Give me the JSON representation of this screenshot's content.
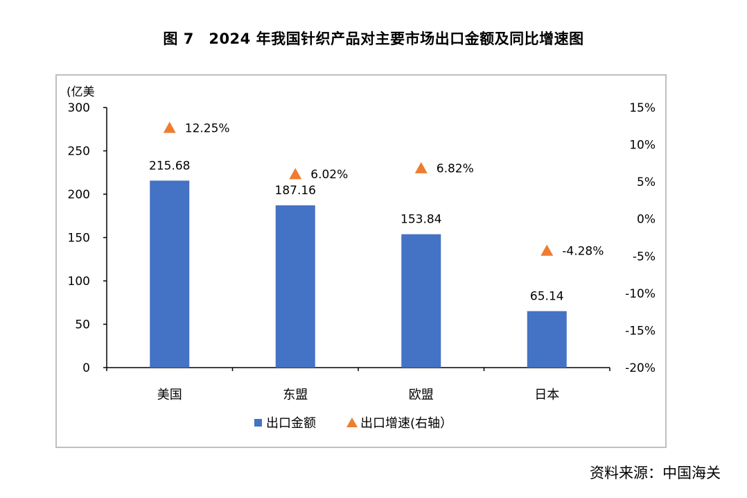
{
  "title": "图 7　2024 年我国针织产品对主要市场出口金额及同比增速图",
  "source": "资料来源：中国海关",
  "colors": {
    "bar": "#4472c4",
    "marker": "#ed7d31",
    "frame": "#bfbfbf"
  },
  "chart_data": {
    "type": "bar",
    "categories": [
      "美国",
      "东盟",
      "欧盟",
      "日本"
    ],
    "series": [
      {
        "name": "出口金额",
        "type": "bar",
        "axis": "left",
        "values": [
          215.68,
          187.16,
          153.84,
          65.14
        ],
        "labels": [
          "215.68",
          "187.16",
          "153.84",
          "65.14"
        ]
      },
      {
        "name": "出口增速(右轴）",
        "type": "scatter",
        "marker": "triangle",
        "axis": "right",
        "values": [
          12.25,
          6.02,
          6.82,
          -4.28
        ],
        "labels": [
          "12.25%",
          "6.02%",
          "6.82%",
          "-4.28%"
        ]
      }
    ],
    "y_left": {
      "unit_label": "(亿美",
      "ylim": [
        0,
        300
      ],
      "ticks": [
        0,
        50,
        100,
        150,
        200,
        250,
        300
      ],
      "tick_labels": [
        "0",
        "50",
        "100",
        "150",
        "200",
        "250",
        "300"
      ]
    },
    "y_right": {
      "ylim": [
        -20,
        15
      ],
      "ticks": [
        -20,
        -15,
        -10,
        -5,
        0,
        5,
        10,
        15
      ],
      "tick_labels": [
        "-20%",
        "-15%",
        "-10%",
        "-5%",
        "0%",
        "5%",
        "10%",
        "15%"
      ]
    },
    "grid": false,
    "legend_position": "bottom"
  }
}
